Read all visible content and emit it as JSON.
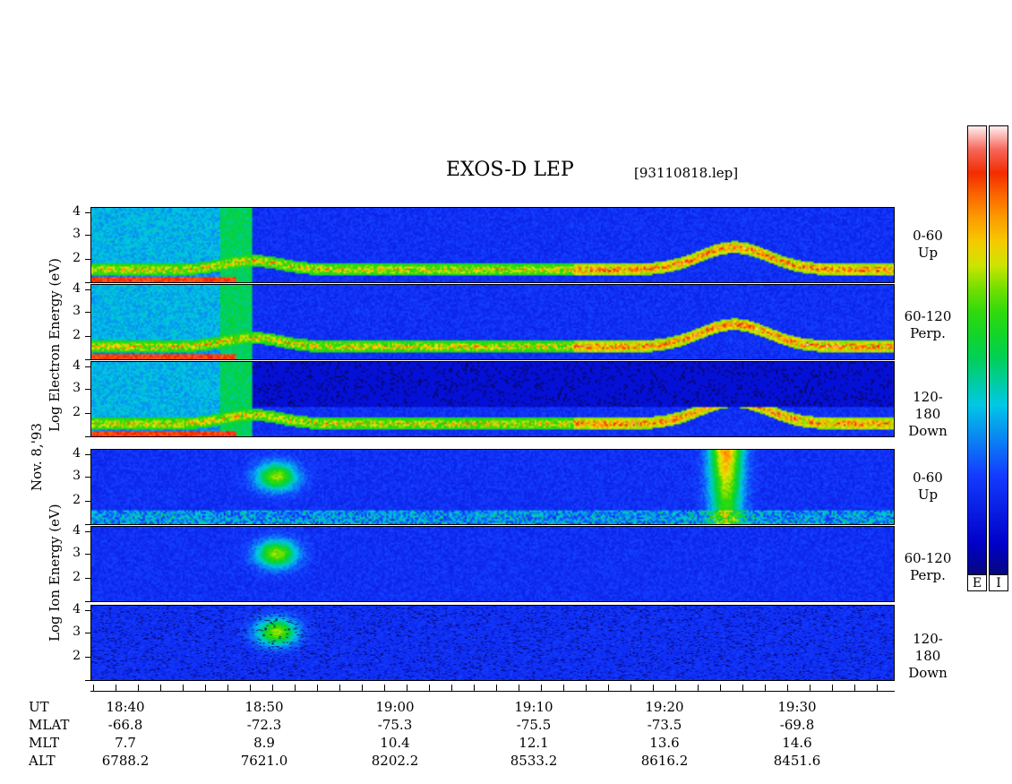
{
  "title": "EXOS-D LEP",
  "filename": "[93110818.lep]",
  "date_label": "Nov. 8,'93",
  "electron_axis_label": "Log  Electron  Energy  (eV)",
  "ion_axis_label": "Log  Ion  Energy  (eV)",
  "panels": [
    {
      "species": "electron",
      "range": "0-60",
      "dir": "Up"
    },
    {
      "species": "electron",
      "range": "60-120",
      "dir": "Perp."
    },
    {
      "species": "electron",
      "range": "120-180",
      "dir": "Down"
    },
    {
      "species": "ion",
      "range": "0-60",
      "dir": "Up"
    },
    {
      "species": "ion",
      "range": "60-120",
      "dir": "Perp."
    },
    {
      "species": "ion",
      "range": "120-180",
      "dir": "Down"
    }
  ],
  "y_ticks": [
    "4",
    "3",
    "2"
  ],
  "colorbar": {
    "labels": [
      "E",
      "I"
    ]
  },
  "chart_data": {
    "type": "heatmap",
    "title": "EXOS-D LEP",
    "ylabel_electron": "Log Electron Energy (eV)",
    "ylabel_ion": "Log Ion Energy (eV)",
    "ylim": [
      1,
      4
    ],
    "x_axis": {
      "rows": [
        {
          "name": "UT",
          "values": [
            "18:40",
            "18:50",
            "19:00",
            "19:10",
            "19:20",
            "19:30"
          ]
        },
        {
          "name": "MLAT",
          "values": [
            "-66.8",
            "-72.3",
            "-75.3",
            "-75.5",
            "-73.5",
            "-69.8"
          ]
        },
        {
          "name": "MLT",
          "values": [
            "7.7",
            "8.9",
            "10.4",
            "12.1",
            "13.6",
            "14.6"
          ]
        },
        {
          "name": "ALT",
          "values": [
            "6788.2",
            "7621.0",
            "8202.2",
            "8533.2",
            "8616.2",
            "8451.6"
          ]
        }
      ]
    }
  }
}
